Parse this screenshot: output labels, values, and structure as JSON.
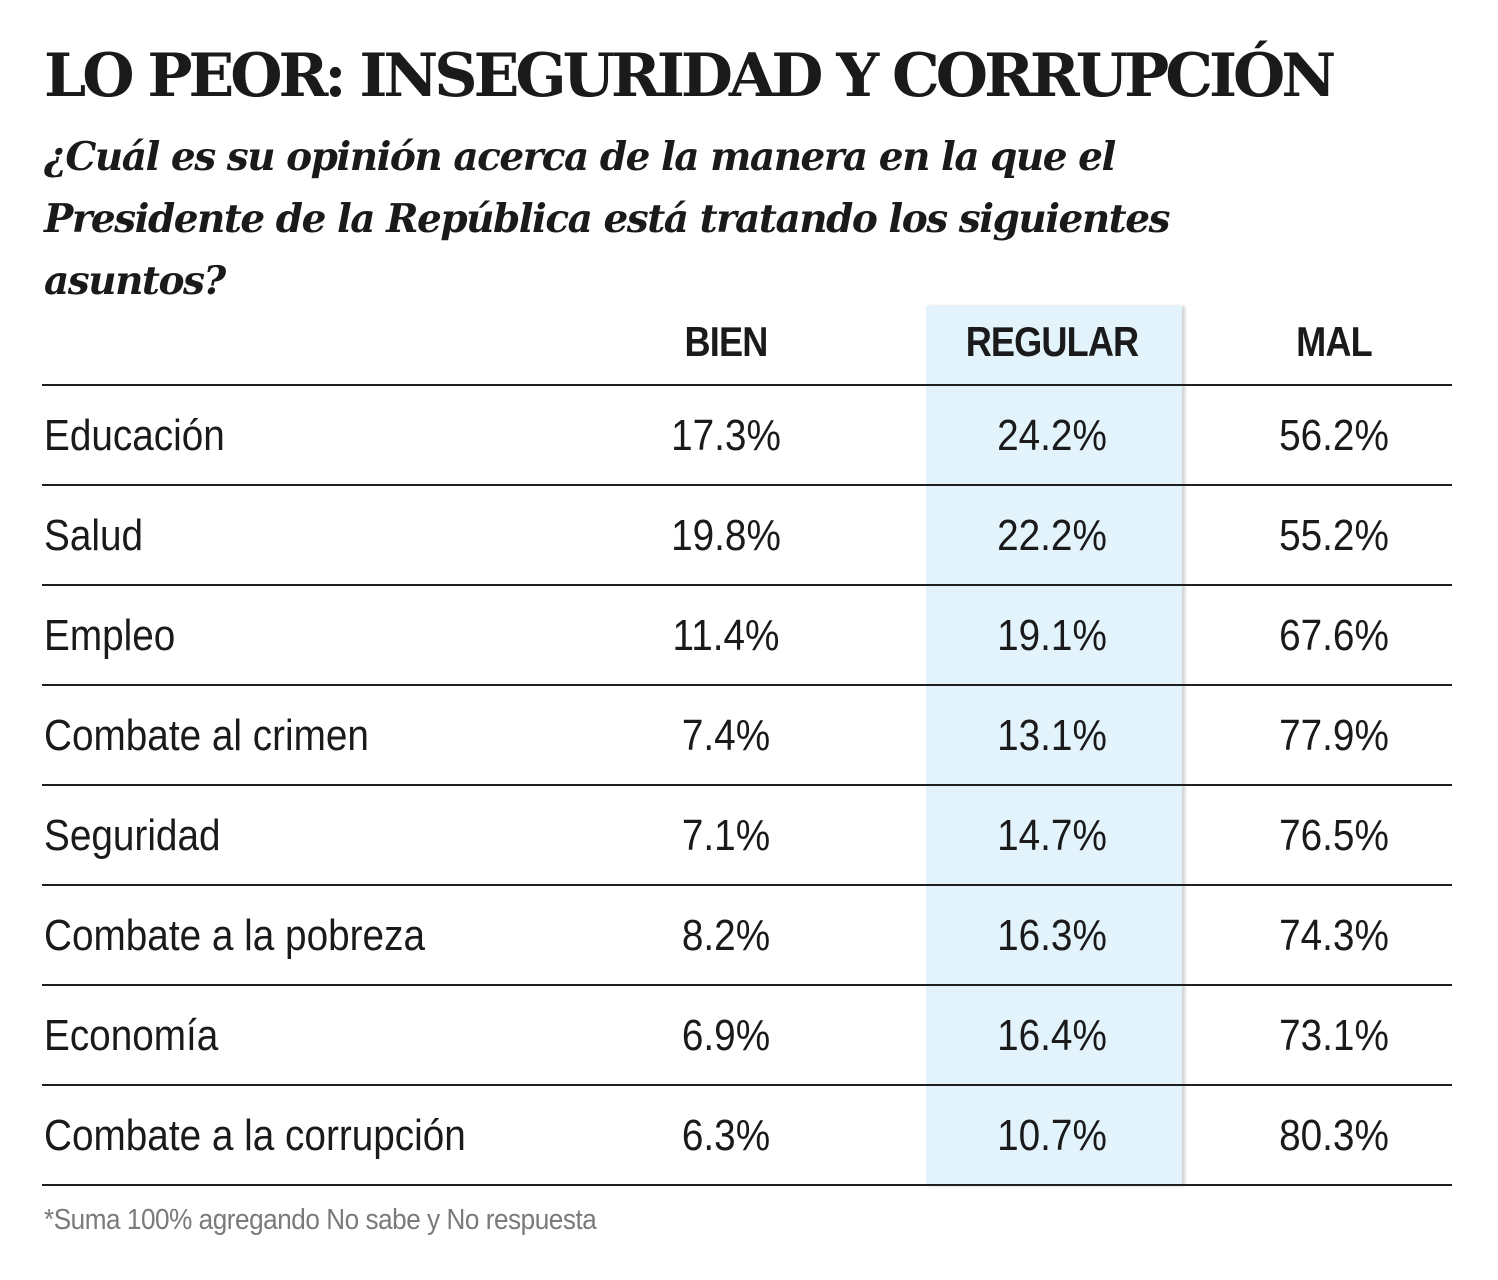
{
  "header": {
    "title": "LO PEOR: INSEGURIDAD Y CORRUPCIÓN",
    "subtitle": "¿Cuál es su opinión acerca de la manera en la que el Presidente de la República está tratando los siguientes asuntos?"
  },
  "chart_data": {
    "type": "table",
    "title": "LO PEOR: INSEGURIDAD Y CORRUPCIÓN",
    "subtitle": "¿Cuál es su opinión acerca de la manera en la que el Presidente de la República está tratando los siguientes asuntos?",
    "columns": [
      "BIEN",
      "REGULAR",
      "MAL"
    ],
    "highlighted_column": "REGULAR",
    "highlight_color": "#e3f3fc",
    "unit": "%",
    "rows": [
      {
        "label": "Educación",
        "values": [
          "17.3%",
          "24.2%",
          "56.2%"
        ]
      },
      {
        "label": "Salud",
        "values": [
          "19.8%",
          "22.2%",
          "55.2%"
        ]
      },
      {
        "label": "Empleo",
        "values": [
          "11.4%",
          "19.1%",
          "67.6%"
        ]
      },
      {
        "label": "Combate al crimen",
        "values": [
          "7.4%",
          "13.1%",
          "77.9%"
        ]
      },
      {
        "label": "Seguridad",
        "values": [
          "7.1%",
          "14.7%",
          "76.5%"
        ]
      },
      {
        "label": "Combate a la pobreza",
        "values": [
          "8.2%",
          "16.3%",
          "74.3%"
        ]
      },
      {
        "label": "Economía",
        "values": [
          "6.9%",
          "16.4%",
          "73.1%"
        ]
      },
      {
        "label": "Combate a la corrupción",
        "values": [
          "6.3%",
          "10.7%",
          "80.3%"
        ]
      }
    ]
  },
  "footnote": "*Suma 100% agregando No sabe y No respuesta"
}
